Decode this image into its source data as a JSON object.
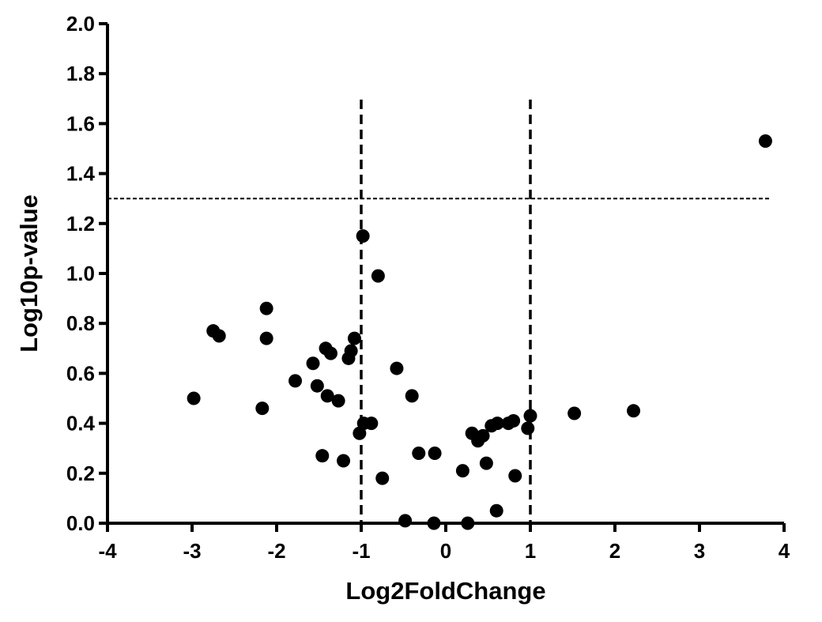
{
  "chart_data": {
    "type": "scatter",
    "xlabel": "Log2FoldChange",
    "ylabel": "Log10p-value",
    "xlim": [
      -4,
      4
    ],
    "ylim": [
      0,
      2.0
    ],
    "x_ticks": [
      "-4",
      "-3",
      "-2",
      "-1",
      "0",
      "1",
      "2",
      "3",
      "4"
    ],
    "y_ticks": [
      "0.0",
      "0.2",
      "0.4",
      "0.6",
      "0.8",
      "1.0",
      "1.2",
      "1.4",
      "1.6",
      "1.8",
      "2.0"
    ],
    "grid": false,
    "legend": "none",
    "point_color": "#000000",
    "threshold_lines": {
      "vertical_x": [
        -1,
        1
      ],
      "horizontal_y": 1.3,
      "style": "dashed"
    },
    "points": [
      {
        "x": -2.98,
        "y": 0.5
      },
      {
        "x": -2.75,
        "y": 0.77
      },
      {
        "x": -2.68,
        "y": 0.75
      },
      {
        "x": -2.17,
        "y": 0.46
      },
      {
        "x": -2.12,
        "y": 0.86
      },
      {
        "x": -2.12,
        "y": 0.74
      },
      {
        "x": -1.78,
        "y": 0.57
      },
      {
        "x": -1.57,
        "y": 0.64
      },
      {
        "x": -1.52,
        "y": 0.55
      },
      {
        "x": -1.46,
        "y": 0.27
      },
      {
        "x": -1.42,
        "y": 0.7
      },
      {
        "x": -1.4,
        "y": 0.51
      },
      {
        "x": -1.36,
        "y": 0.68
      },
      {
        "x": -1.27,
        "y": 0.49
      },
      {
        "x": -1.21,
        "y": 0.25
      },
      {
        "x": -1.15,
        "y": 0.66
      },
      {
        "x": -1.12,
        "y": 0.69
      },
      {
        "x": -1.08,
        "y": 0.74
      },
      {
        "x": -1.02,
        "y": 0.36
      },
      {
        "x": -0.98,
        "y": 1.15
      },
      {
        "x": -0.97,
        "y": 0.4
      },
      {
        "x": -0.88,
        "y": 0.4
      },
      {
        "x": -0.8,
        "y": 0.99
      },
      {
        "x": -0.75,
        "y": 0.18
      },
      {
        "x": -0.58,
        "y": 0.62
      },
      {
        "x": -0.48,
        "y": 0.01
      },
      {
        "x": -0.4,
        "y": 0.51
      },
      {
        "x": -0.32,
        "y": 0.28
      },
      {
        "x": -0.14,
        "y": 0.0
      },
      {
        "x": -0.13,
        "y": 0.28
      },
      {
        "x": 0.2,
        "y": 0.21
      },
      {
        "x": 0.26,
        "y": 0.0
      },
      {
        "x": 0.31,
        "y": 0.36
      },
      {
        "x": 0.38,
        "y": 0.33
      },
      {
        "x": 0.44,
        "y": 0.35
      },
      {
        "x": 0.48,
        "y": 0.24
      },
      {
        "x": 0.54,
        "y": 0.39
      },
      {
        "x": 0.6,
        "y": 0.05
      },
      {
        "x": 0.61,
        "y": 0.4
      },
      {
        "x": 0.74,
        "y": 0.4
      },
      {
        "x": 0.8,
        "y": 0.41
      },
      {
        "x": 0.82,
        "y": 0.19
      },
      {
        "x": 0.97,
        "y": 0.38
      },
      {
        "x": 1.0,
        "y": 0.43
      },
      {
        "x": 1.52,
        "y": 0.44
      },
      {
        "x": 2.22,
        "y": 0.45
      },
      {
        "x": 3.78,
        "y": 1.53
      }
    ]
  }
}
